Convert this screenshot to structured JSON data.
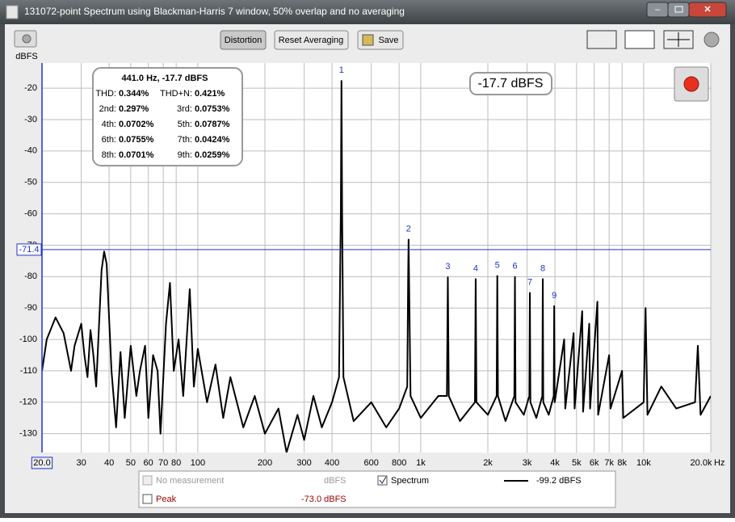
{
  "window_title": "131072-point Spectrum using Blackman-Harris 7 window, 50% overlap and no averaging",
  "toolbar": {
    "buttons": [
      "Distortion",
      "Reset Averaging",
      "Save"
    ],
    "y_unit": "dBFS"
  },
  "distortion": {
    "header": "441.0 Hz, -17.7 dBFS",
    "rows": [
      [
        [
          "THD:",
          "0.344%"
        ],
        [
          "THD+N:",
          "0.421%"
        ]
      ],
      [
        [
          "2nd:",
          "0.297%"
        ],
        [
          "3rd:",
          "0.0753%"
        ]
      ],
      [
        [
          "4th:",
          "0.0702%"
        ],
        [
          "5th:",
          "0.0787%"
        ]
      ],
      [
        [
          "6th:",
          "0.0755%"
        ],
        [
          "7th:",
          "0.0424%"
        ]
      ],
      [
        [
          "8th:",
          "0.0701%"
        ],
        [
          "9th:",
          "0.0259%"
        ]
      ]
    ]
  },
  "readout": "-17.7 dBFS",
  "legend": {
    "rows": [
      [
        "No measurement",
        "dBFS",
        "Spectrum",
        "-99.2 dBFS"
      ],
      [
        "Peak",
        "-73.0 dBFS"
      ]
    ]
  },
  "chart_data": {
    "type": "line",
    "color": "#000000",
    "xlabel": "Hz",
    "log_x": true,
    "grid": true,
    "xlim": [
      20,
      20000
    ],
    "ylim": [
      -136,
      -12
    ],
    "xticks": [
      {
        "value": 20,
        "label": "20.0"
      },
      30,
      40,
      50,
      60,
      70,
      80,
      100,
      200,
      300,
      400,
      600,
      800,
      {
        "value": 1000,
        "label": "1k"
      },
      {
        "value": 2000,
        "label": "2k"
      },
      {
        "value": 3000,
        "label": "3k"
      },
      {
        "value": 4000,
        "label": "4k"
      },
      {
        "value": 5000,
        "label": "5k"
      },
      {
        "value": 6000,
        "label": "6k"
      },
      {
        "value": 7000,
        "label": "7k"
      },
      {
        "value": 8000,
        "label": "8k"
      },
      {
        "value": 10000,
        "label": "10k"
      },
      {
        "value": 20000,
        "label": "20.0k"
      }
    ],
    "yticks": [
      -20,
      -30,
      -40,
      -50,
      -60,
      -70,
      -80,
      -90,
      -100,
      -110,
      -120,
      -130
    ],
    "cursor_level": -71.4,
    "harmonics": {
      "labels": [
        1,
        2,
        3,
        4,
        5,
        6,
        7,
        8,
        9
      ],
      "x": [
        441,
        882,
        1323,
        1764,
        2205,
        2646,
        3087,
        3528,
        3969
      ],
      "values": [
        -17.7,
        -68.2,
        -80.2,
        -80.8,
        -79.8,
        -80.1,
        -85.2,
        -80.8,
        -89.4
      ]
    },
    "x": [
      20,
      21,
      23,
      25,
      27,
      28,
      30,
      31,
      32,
      33,
      34,
      35,
      37,
      38,
      39,
      41,
      43,
      45,
      47,
      50,
      53,
      55,
      58,
      60,
      63,
      66,
      68,
      72,
      75,
      78,
      82,
      86,
      92,
      96,
      100,
      110,
      120,
      130,
      140,
      160,
      180,
      200,
      230,
      250,
      280,
      300,
      330,
      360,
      400,
      430,
      438,
      441,
      444,
      450,
      500,
      600,
      700,
      800,
      870,
      878,
      882,
      886,
      900,
      1000,
      1200,
      1310,
      1323,
      1336,
      1500,
      1750,
      1764,
      1778,
      2000,
      2190,
      2205,
      2220,
      2400,
      2630,
      2646,
      2662,
      2900,
      3070,
      3087,
      3104,
      3300,
      3510,
      3528,
      3546,
      3750,
      3950,
      3969,
      3990,
      4400,
      4450,
      4850,
      4900,
      5300,
      5350,
      5700,
      5750,
      6200,
      6250,
      7000,
      7100,
      8000,
      8100,
      10000,
      10200,
      10400,
      12000,
      14000,
      17000,
      17500,
      18000,
      20000
    ],
    "values": [
      -110,
      -100,
      -93,
      -98,
      -110,
      -102,
      -95,
      -105,
      -112,
      -97,
      -105,
      -115,
      -78,
      -72,
      -76,
      -110,
      -128,
      -104,
      -125,
      -102,
      -118,
      -110,
      -102,
      -125,
      -105,
      -110,
      -130,
      -95,
      -82,
      -110,
      -100,
      -118,
      -84,
      -115,
      -103,
      -120,
      -108,
      -125,
      -112,
      -128,
      -118,
      -130,
      -122,
      -136,
      -124,
      -132,
      -118,
      -128,
      -120,
      -112,
      -60,
      -17.7,
      -60,
      -112,
      -126,
      -120,
      -128,
      -122,
      -115,
      -80,
      -68.2,
      -80,
      -118,
      -125,
      -118,
      -118,
      -80.2,
      -118,
      -126,
      -120,
      -80.8,
      -120,
      -124,
      -118,
      -79.8,
      -118,
      -126,
      -118,
      -80.1,
      -120,
      -124,
      -118,
      -85.2,
      -120,
      -125,
      -118,
      -80.8,
      -120,
      -124,
      -118,
      -89.4,
      -120,
      -100,
      -122,
      -98,
      -122,
      -91,
      -123,
      -95,
      -122,
      -88,
      -124,
      -105,
      -122,
      -110,
      -125,
      -120,
      -90,
      -124,
      -115,
      -122,
      -120,
      -102,
      -124,
      -118
    ]
  }
}
